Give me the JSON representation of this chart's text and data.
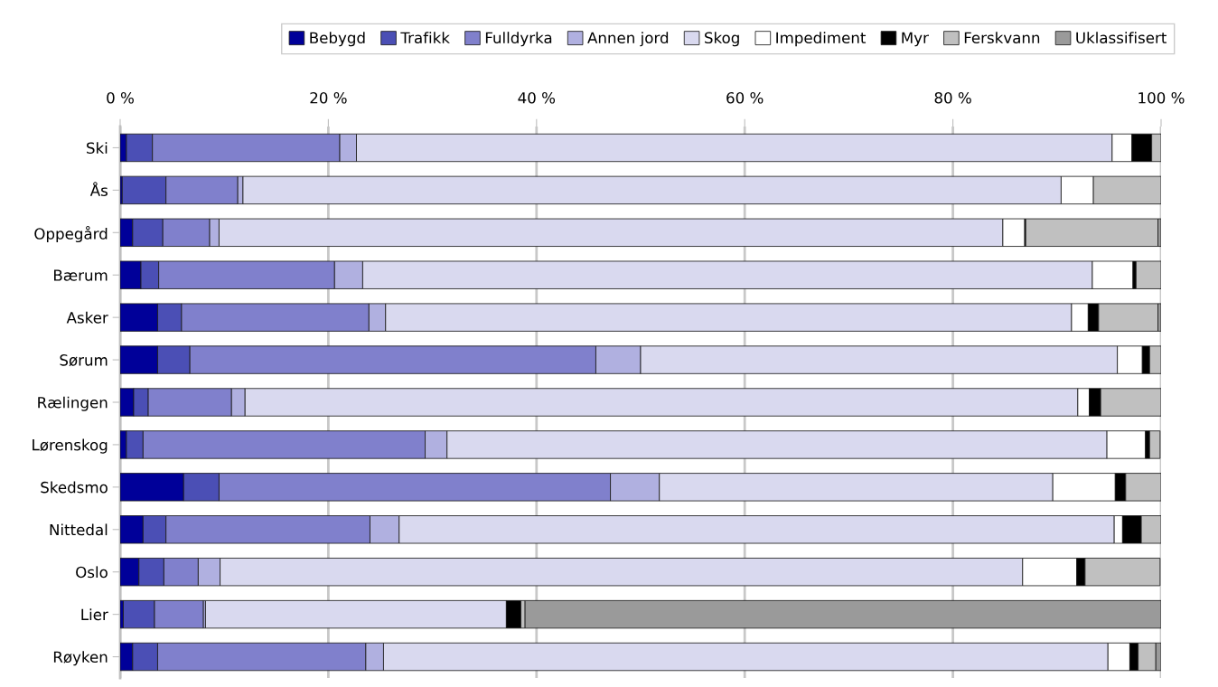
{
  "chart_data": {
    "type": "bar",
    "orientation": "horizontal",
    "stacked": true,
    "categories": [
      "Ski",
      "Ås",
      "Oppegård",
      "Bærum",
      "Asker",
      "Sørum",
      "Rælingen",
      "Lørenskog",
      "Skedsmo",
      "Nittedal",
      "Oslo",
      "Lier",
      "Røyken"
    ],
    "series": [
      {
        "name": "Bebygd",
        "color": "#000099",
        "values": [
          0.6,
          0.2,
          1.2,
          2.0,
          3.6,
          3.6,
          1.3,
          0.6,
          6.1,
          2.2,
          1.8,
          0.3,
          1.2
        ]
      },
      {
        "name": "Trafikk",
        "color": "#4b4fb5",
        "values": [
          2.5,
          4.2,
          2.9,
          1.7,
          2.3,
          3.1,
          1.4,
          1.6,
          3.4,
          2.2,
          2.4,
          3.0,
          2.4
        ]
      },
      {
        "name": "Fulldyrka",
        "color": "#8080cc",
        "values": [
          18.0,
          6.9,
          4.5,
          16.9,
          18.0,
          39.0,
          8.0,
          27.1,
          37.6,
          19.6,
          3.3,
          4.7,
          20.0
        ]
      },
      {
        "name": "Annen jord",
        "color": "#b0b0e0",
        "values": [
          1.6,
          0.5,
          0.9,
          2.7,
          1.6,
          4.3,
          1.3,
          2.1,
          4.7,
          2.8,
          2.1,
          0.2,
          1.7
        ]
      },
      {
        "name": "Skog",
        "color": "#d9d9ef",
        "values": [
          72.6,
          78.6,
          75.3,
          70.1,
          65.9,
          45.8,
          80.0,
          63.4,
          37.8,
          68.7,
          77.1,
          28.9,
          69.6
        ]
      },
      {
        "name": "Impediment",
        "color": "#ffffff",
        "values": [
          1.9,
          3.1,
          2.1,
          3.9,
          1.6,
          2.4,
          1.1,
          3.7,
          6.0,
          0.8,
          5.2,
          0,
          2.1
        ]
      },
      {
        "name": "Myr",
        "color": "#000000",
        "values": [
          1.9,
          0,
          0.1,
          0.3,
          1.0,
          0.7,
          1.1,
          0.4,
          1.0,
          1.8,
          0.8,
          1.4,
          0.8
        ]
      },
      {
        "name": "Ferskvann",
        "color": "#c0c0c0",
        "values": [
          0.9,
          6.5,
          12.7,
          2.4,
          5.7,
          1.1,
          5.8,
          1.0,
          3.4,
          1.9,
          7.2,
          0.4,
          1.7
        ]
      },
      {
        "name": "Uklassifisert",
        "color": "#9a9a9a",
        "values": [
          0,
          0,
          0.3,
          0,
          0.3,
          0,
          0,
          null,
          0,
          0,
          null,
          61.1,
          0.5
        ]
      }
    ],
    "xlim": [
      0,
      100
    ],
    "xticks": [
      {
        "value": 0,
        "label": "0 %"
      },
      {
        "value": 20,
        "label": "20 %"
      },
      {
        "value": 40,
        "label": "40 %"
      },
      {
        "value": 60,
        "label": "60 %"
      },
      {
        "value": 80,
        "label": "80 %"
      },
      {
        "value": 100,
        "label": "100 %"
      }
    ],
    "grid": "x",
    "legend": "top right"
  }
}
